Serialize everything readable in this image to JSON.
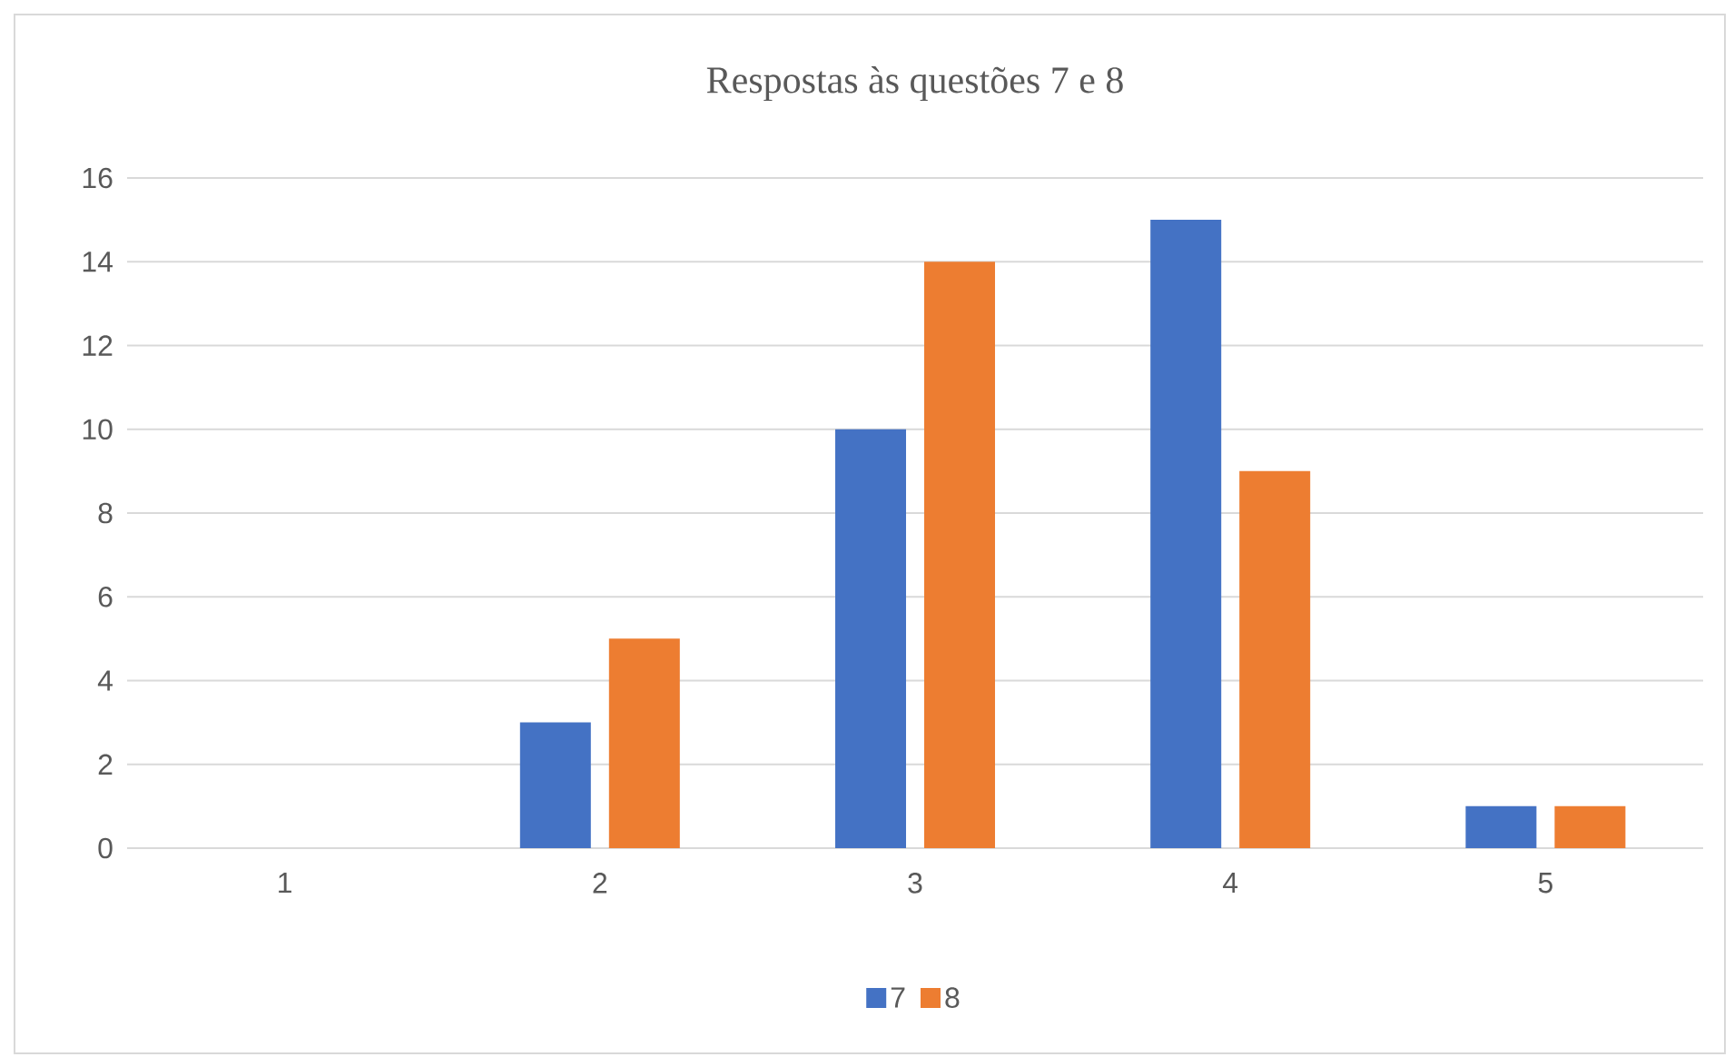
{
  "chart_data": {
    "type": "bar",
    "title": "Respostas às questões 7 e 8",
    "categories": [
      "1",
      "2",
      "3",
      "4",
      "5"
    ],
    "series": [
      {
        "name": "7",
        "color": "#4472c4",
        "values": [
          0,
          3,
          10,
          15,
          1
        ]
      },
      {
        "name": "8",
        "color": "#ed7d31",
        "values": [
          0,
          5,
          14,
          9,
          1
        ]
      }
    ],
    "ylim": [
      0,
      16
    ],
    "yticks": [
      0,
      2,
      4,
      6,
      8,
      10,
      12,
      14,
      16
    ],
    "grid": "y",
    "legend": "bottom"
  }
}
